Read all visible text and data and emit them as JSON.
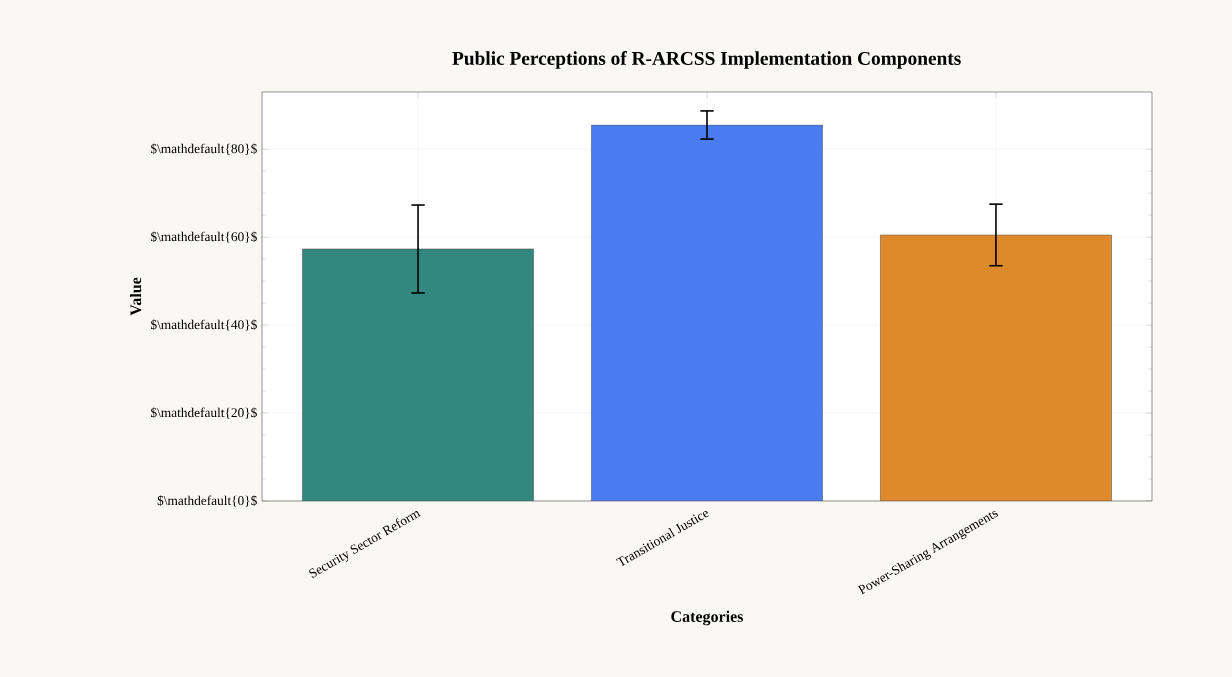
{
  "chart_data": {
    "type": "bar",
    "title": "Public Perceptions of R-ARCSS Implementation Components",
    "xlabel": "Categories",
    "ylabel": "Value",
    "categories": [
      "Security Sector Reform",
      "Transitional Justice",
      "Power-Sharing Arrangements"
    ],
    "values": [
      57.3,
      85.5,
      60.5
    ],
    "errors": [
      10,
      3.2,
      7
    ],
    "colors": [
      "#32877f",
      "#4a7cef",
      "#de8a2c"
    ],
    "ylim": [
      0,
      93
    ],
    "yticks": [
      {
        "value": 0,
        "label": "$\\mathdefault{0}$"
      },
      {
        "value": 20,
        "label": "$\\mathdefault{20}$"
      },
      {
        "value": 40,
        "label": "$\\mathdefault{40}$"
      },
      {
        "value": 60,
        "label": "$\\mathdefault{60}$"
      },
      {
        "value": 80,
        "label": "$\\mathdefault{80}$"
      }
    ],
    "grid": true
  }
}
